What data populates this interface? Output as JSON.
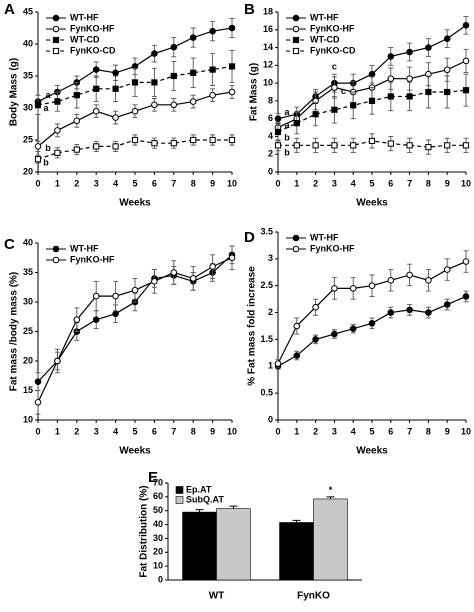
{
  "chart_data": [
    {
      "type": "line",
      "label": "A",
      "ylabel": "Body Mass (g)",
      "xlabel": "Weeks",
      "x": [
        0,
        1,
        2,
        3,
        4,
        5,
        6,
        7,
        8,
        9,
        10
      ],
      "xlim": [
        0,
        10
      ],
      "xticks": [
        0,
        1,
        2,
        3,
        4,
        5,
        6,
        7,
        8,
        9,
        10
      ],
      "ylim": [
        20,
        45
      ],
      "yticks": [
        20,
        25,
        30,
        35,
        40,
        45
      ],
      "series": [
        {
          "name": "WT-HF",
          "color": "#000000",
          "marker": "circle-filled",
          "line": "solid",
          "values": [
            31,
            32.5,
            34,
            36,
            35.5,
            36.5,
            38.5,
            39.5,
            41,
            42,
            42.5
          ],
          "errors": [
            1,
            1,
            1,
            1.2,
            1.2,
            1.3,
            1.3,
            1.5,
            1.5,
            1.5,
            1.5
          ]
        },
        {
          "name": "FynKO-HF",
          "color": "#000000",
          "marker": "circle-open",
          "line": "solid",
          "values": [
            24,
            26.5,
            28,
            29.5,
            28.5,
            29.5,
            30.5,
            30.5,
            31,
            32,
            32.5
          ],
          "errors": [
            0.8,
            1,
            1,
            1,
            1,
            1,
            1,
            1,
            1,
            1,
            1
          ]
        },
        {
          "name": "WT-CD",
          "color": "#000000",
          "marker": "square-filled",
          "line": "dashed",
          "values": [
            30.5,
            31,
            32,
            33,
            33,
            34,
            34,
            35,
            35.5,
            36,
            36.5
          ],
          "errors": [
            1.5,
            1.5,
            2,
            2,
            2,
            2.2,
            2.2,
            2.3,
            2.3,
            2.5,
            2.5
          ]
        },
        {
          "name": "FynKO-CD",
          "color": "#000000",
          "marker": "square-open",
          "line": "dashed",
          "values": [
            22,
            23,
            23.5,
            24,
            24,
            25,
            24.5,
            24.5,
            25,
            25,
            25
          ],
          "errors": [
            0.6,
            0.8,
            0.8,
            0.8,
            0.8,
            0.8,
            0.8,
            0.8,
            0.8,
            0.8,
            0.8
          ]
        }
      ],
      "annotations": [
        "a",
        "a",
        "b",
        "b"
      ]
    },
    {
      "type": "line",
      "label": "B",
      "ylabel": "Fat Mass (g)",
      "xlabel": "Weeks",
      "x": [
        0,
        1,
        2,
        3,
        4,
        5,
        6,
        7,
        8,
        9,
        10
      ],
      "xlim": [
        0,
        10
      ],
      "xticks": [
        0,
        1,
        2,
        3,
        4,
        5,
        6,
        7,
        8,
        9,
        10
      ],
      "ylim": [
        0,
        18
      ],
      "yticks": [
        0,
        2,
        4,
        6,
        8,
        10,
        12,
        14,
        16,
        18
      ],
      "series": [
        {
          "name": "WT-HF",
          "color": "#000000",
          "marker": "circle-filled",
          "line": "solid",
          "values": [
            6,
            6.5,
            8.5,
            10,
            10,
            11,
            13,
            13.5,
            14,
            15,
            16.5
          ],
          "errors": [
            0.6,
            0.8,
            0.8,
            1,
            1,
            1,
            1,
            1,
            1,
            1,
            1
          ]
        },
        {
          "name": "FynKO-HF",
          "color": "#000000",
          "marker": "circle-open",
          "line": "solid",
          "values": [
            5,
            6,
            8,
            9.5,
            9,
            9.5,
            10.5,
            10.5,
            11,
            11.5,
            12.5
          ],
          "errors": [
            0.6,
            0.8,
            1,
            1.2,
            1.2,
            1.2,
            1.2,
            1.3,
            1.3,
            1.3,
            1.3
          ]
        },
        {
          "name": "WT-CD",
          "color": "#000000",
          "marker": "square-filled",
          "line": "dashed",
          "values": [
            4.5,
            5.5,
            6.5,
            7,
            7.5,
            8,
            8.5,
            8.5,
            9,
            9,
            9.2
          ],
          "errors": [
            1,
            1.2,
            1.3,
            1.5,
            1.5,
            1.5,
            1.6,
            1.6,
            1.8,
            1.8,
            1.8
          ]
        },
        {
          "name": "FynKO-CD",
          "color": "#000000",
          "marker": "square-open",
          "line": "dashed",
          "values": [
            3,
            3,
            3,
            3,
            3,
            3.5,
            3.2,
            3,
            2.8,
            3,
            3
          ],
          "errors": [
            0.6,
            0.8,
            0.8,
            0.8,
            0.8,
            0.8,
            0.8,
            0.8,
            0.8,
            0.8,
            0.8
          ]
        }
      ],
      "annotations": [
        "a",
        "a",
        "b",
        "b",
        "c",
        "c"
      ]
    },
    {
      "type": "line",
      "label": "C",
      "ylabel": "Fat mass /body mass (%)",
      "xlabel": "Weeks",
      "x": [
        0,
        1,
        2,
        3,
        4,
        5,
        6,
        7,
        8,
        9,
        10
      ],
      "xlim": [
        0,
        10
      ],
      "xticks": [
        0,
        1,
        2,
        3,
        4,
        5,
        6,
        7,
        8,
        9,
        10
      ],
      "ylim": [
        10,
        40
      ],
      "yticks": [
        10,
        15,
        20,
        25,
        30,
        35,
        40
      ],
      "series": [
        {
          "name": "WT-HF",
          "color": "#000000",
          "marker": "circle-filled",
          "line": "solid",
          "values": [
            16.5,
            20,
            25,
            27,
            28,
            30,
            34,
            34.5,
            33.5,
            35,
            38
          ],
          "errors": [
            1.5,
            1.5,
            1.5,
            1.5,
            1.5,
            1.5,
            1.5,
            1.5,
            1.5,
            1.5,
            1.5
          ]
        },
        {
          "name": "FynKO-HF",
          "color": "#000000",
          "marker": "circle-open",
          "line": "solid",
          "values": [
            13,
            20,
            27,
            31,
            31,
            32,
            33.5,
            35,
            34,
            36,
            37.5
          ],
          "errors": [
            2,
            2,
            2,
            2.5,
            2.5,
            2,
            2,
            2,
            2,
            2,
            2
          ]
        }
      ]
    },
    {
      "type": "line",
      "label": "D",
      "ylabel": "% Fat mass fold increase",
      "xlabel": "Weeks",
      "x": [
        0,
        1,
        2,
        3,
        4,
        5,
        6,
        7,
        8,
        9,
        10
      ],
      "xlim": [
        0,
        10
      ],
      "xticks": [
        0,
        1,
        2,
        3,
        4,
        5,
        6,
        7,
        8,
        9,
        10
      ],
      "ylim": [
        0,
        3.5
      ],
      "yticks": [
        0,
        0.5,
        1,
        1.5,
        2,
        2.5,
        3,
        3.5
      ],
      "series": [
        {
          "name": "WT-HF",
          "color": "#000000",
          "marker": "circle-filled",
          "line": "solid",
          "values": [
            1,
            1.2,
            1.5,
            1.6,
            1.7,
            1.8,
            2,
            2.05,
            2,
            2.15,
            2.3
          ],
          "errors": [
            0.05,
            0.08,
            0.08,
            0.08,
            0.08,
            0.1,
            0.1,
            0.1,
            0.1,
            0.1,
            0.1
          ]
        },
        {
          "name": "FynKO-HF",
          "color": "#000000",
          "marker": "circle-open",
          "line": "solid",
          "values": [
            1.05,
            1.75,
            2.1,
            2.45,
            2.45,
            2.5,
            2.6,
            2.7,
            2.6,
            2.8,
            2.95
          ],
          "errors": [
            0.08,
            0.15,
            0.15,
            0.2,
            0.2,
            0.2,
            0.2,
            0.2,
            0.2,
            0.2,
            0.2
          ]
        }
      ]
    },
    {
      "type": "bar",
      "label": "E",
      "ylabel": "Fat Distribution (%)",
      "categories": [
        "WT",
        "FynKO"
      ],
      "ylim": [
        0,
        70
      ],
      "yticks": [
        0,
        10,
        20,
        30,
        40,
        50,
        60,
        70
      ],
      "series": [
        {
          "name": "Ep.AT",
          "color": "#000000",
          "values": [
            49,
            41.5
          ],
          "errors": [
            1.8,
            1.5
          ]
        },
        {
          "name": "SubQ.AT",
          "color": "#c8c8c8",
          "values": [
            51.5,
            58.5
          ],
          "errors": [
            1.8,
            1.5
          ]
        }
      ],
      "annotations": [
        "*"
      ]
    }
  ]
}
